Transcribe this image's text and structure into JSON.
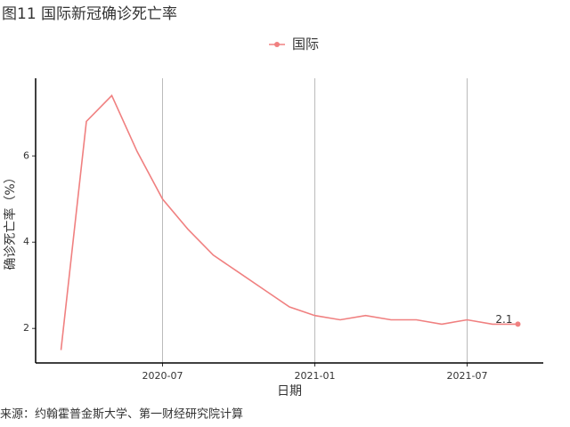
{
  "chart_data": {
    "type": "line",
    "title": "图11 国际新冠确诊死亡率",
    "x_label": "日期",
    "y_label": "确诊死亡率（%）",
    "source": "来源：约翰霍普金斯大学、第一财经研究院计算",
    "x": [
      "2020-03",
      "2020-04",
      "2020-05",
      "2020-06",
      "2020-07",
      "2020-08",
      "2020-09",
      "2020-10",
      "2020-11",
      "2020-12",
      "2021-01",
      "2021-02",
      "2021-03",
      "2021-04",
      "2021-05",
      "2021-06",
      "2021-07",
      "2021-08",
      "2021-09"
    ],
    "series": [
      {
        "name": "国际",
        "color": "#f08080",
        "values": [
          1.5,
          6.8,
          7.4,
          6.1,
          5.0,
          4.3,
          3.7,
          3.3,
          2.9,
          2.5,
          2.3,
          2.2,
          2.3,
          2.2,
          2.2,
          2.1,
          2.2,
          2.1,
          2.1
        ]
      }
    ],
    "end_label": "2.1",
    "xlim": [
      "2020-02",
      "2021-10"
    ],
    "xticks": [
      "2020-07",
      "2021-01",
      "2021-07"
    ],
    "ylim": [
      1.2,
      7.8
    ],
    "yticks": [
      2,
      4,
      6
    ],
    "grid": true,
    "legend": "top"
  }
}
